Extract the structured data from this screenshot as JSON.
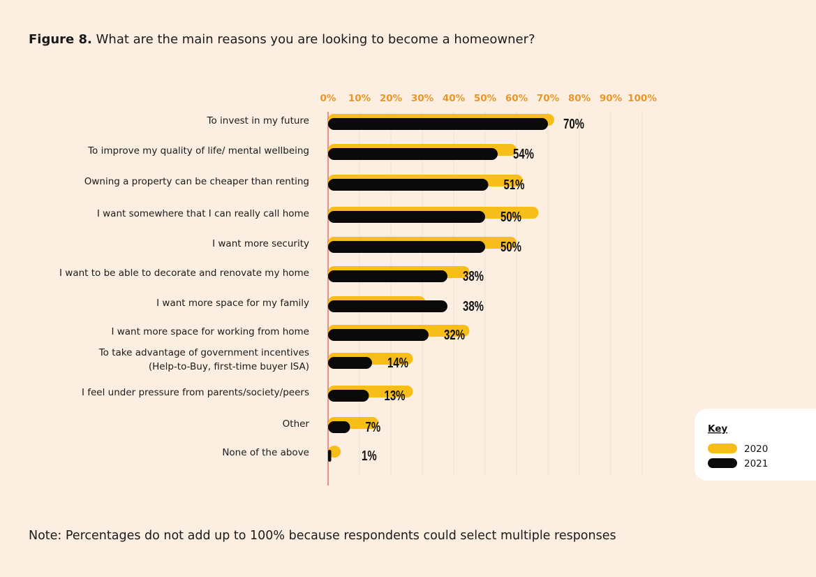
{
  "chart_data": {
    "type": "bar",
    "figure_label": "Figure 8.",
    "title": "What are the main reasons you are looking to become a homeowner?",
    "note": "Note: Percentages do not add up to 100% because respondents could select multiple responses",
    "legend_title": "Key",
    "categories": [
      "To invest in my future",
      "To improve my quality of life/ mental wellbeing",
      "Owning a property can be cheaper than renting",
      "I want somewhere that I can really call home",
      "I want more security",
      "I want to be able to decorate and renovate my home",
      "I want more space for my family",
      "I want more space for working from home",
      "To take advantage of government incentives\n(Help-to-Buy, first-time buyer ISA)",
      "I feel under pressure from parents/society/peers",
      "Other",
      "None of the above"
    ],
    "series": [
      {
        "name": "2020",
        "color": "#f7bd18",
        "values": [
          72,
          60,
          62,
          67,
          60,
          45,
          31,
          45,
          27,
          27,
          16,
          4
        ]
      },
      {
        "name": "2021",
        "color": "#0a0a0a",
        "values": [
          70,
          54,
          51,
          50,
          50,
          38,
          38,
          32,
          14,
          13,
          7,
          1
        ],
        "value_labels": [
          "70%",
          "54%",
          "51%",
          "50%",
          "50%",
          "38%",
          "38%",
          "32%",
          "14%",
          "13%",
          "7%",
          "1%"
        ]
      }
    ],
    "xlim": [
      0,
      100
    ],
    "xticks": [
      {
        "value": 0,
        "label": "0%"
      },
      {
        "value": 10,
        "label": "10%"
      },
      {
        "value": 20,
        "label": "20%"
      },
      {
        "value": 30,
        "label": "30%"
      },
      {
        "value": 40,
        "label": "40%"
      },
      {
        "value": 50,
        "label": "50%"
      },
      {
        "value": 60,
        "label": "60%"
      },
      {
        "value": 70,
        "label": "70%"
      },
      {
        "value": 80,
        "label": "80%"
      },
      {
        "value": 90,
        "label": "90%"
      },
      {
        "value": 100,
        "label": "100%"
      }
    ],
    "grid": true,
    "legend_position": "right"
  }
}
